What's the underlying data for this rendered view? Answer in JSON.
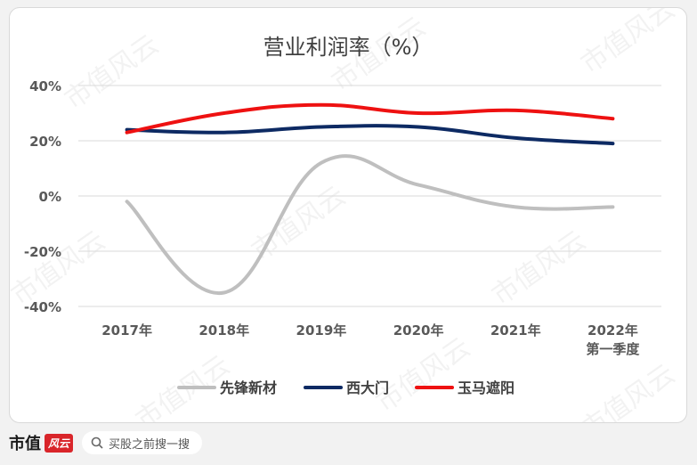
{
  "chart_data": {
    "type": "line",
    "title": "营业利润率（%）",
    "categories": [
      "2017年",
      "2018年",
      "2019年",
      "2020年",
      "2021年",
      "2022年\n第一季度"
    ],
    "ylim": [
      -40,
      40
    ],
    "yticks": [
      -40,
      -20,
      0,
      20,
      40
    ],
    "ytick_labels": [
      "-40%",
      "-20%",
      "0%",
      "20%",
      "40%"
    ],
    "grid": true,
    "legend_position": "bottom",
    "series": [
      {
        "name": "先锋新材",
        "color": "#bfbfbf",
        "values": [
          -2,
          -35,
          12,
          4,
          -4,
          -4
        ]
      },
      {
        "name": "西大门",
        "color": "#0d2a63",
        "values": [
          24,
          23,
          25,
          25,
          21,
          19
        ]
      },
      {
        "name": "玉马遮阳",
        "color": "#ee1111",
        "values": [
          23,
          30,
          33,
          30,
          31,
          28
        ]
      }
    ]
  },
  "watermark": "市值风云",
  "footer": {
    "brand": "市值",
    "brand_mark": "风云",
    "search_placeholder": "买股之前搜一搜"
  }
}
